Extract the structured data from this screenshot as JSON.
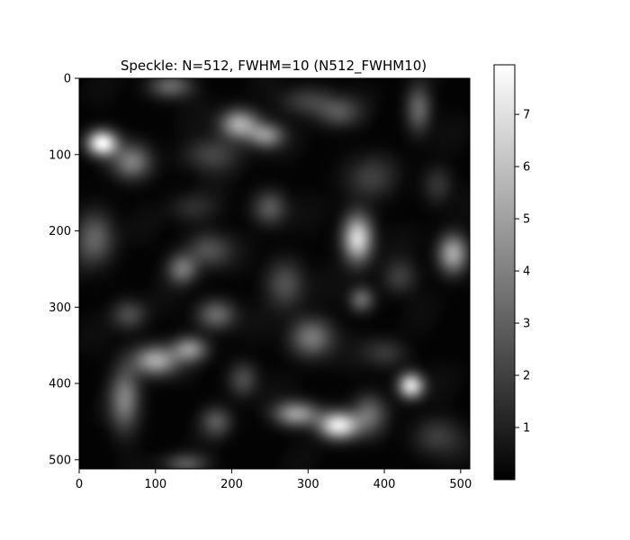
{
  "chart_data": {
    "type": "heatmap",
    "title": "Speckle: N=512, FWHM=10 (N512_FWHM10)",
    "xlabel": "",
    "ylabel": "",
    "xlim": [
      0,
      512
    ],
    "ylim": [
      512,
      0
    ],
    "x_ticks": [
      0,
      100,
      200,
      300,
      400,
      500
    ],
    "y_ticks": [
      0,
      100,
      200,
      300,
      400,
      500
    ],
    "colormap": "gray",
    "colorbar": {
      "range": [
        0,
        7.95
      ],
      "ticks": [
        1,
        2,
        3,
        4,
        5,
        6,
        7
      ]
    },
    "grid": false,
    "blobs": [
      {
        "x": 30,
        "y": 85,
        "value": 7.5,
        "sx": 14,
        "sy": 12
      },
      {
        "x": 70,
        "y": 110,
        "value": 3.5,
        "sx": 18,
        "sy": 16
      },
      {
        "x": 120,
        "y": 10,
        "value": 3.0,
        "sx": 20,
        "sy": 12
      },
      {
        "x": 210,
        "y": 60,
        "value": 5.0,
        "sx": 18,
        "sy": 14
      },
      {
        "x": 245,
        "y": 75,
        "value": 4.0,
        "sx": 16,
        "sy": 12
      },
      {
        "x": 300,
        "y": 30,
        "value": 1.8,
        "sx": 26,
        "sy": 14
      },
      {
        "x": 340,
        "y": 45,
        "value": 2.2,
        "sx": 20,
        "sy": 14
      },
      {
        "x": 445,
        "y": 40,
        "value": 3.0,
        "sx": 12,
        "sy": 22
      },
      {
        "x": 175,
        "y": 100,
        "value": 2.0,
        "sx": 26,
        "sy": 16
      },
      {
        "x": 380,
        "y": 130,
        "value": 1.6,
        "sx": 24,
        "sy": 20
      },
      {
        "x": 470,
        "y": 140,
        "value": 1.5,
        "sx": 14,
        "sy": 18
      },
      {
        "x": 20,
        "y": 210,
        "value": 3.0,
        "sx": 18,
        "sy": 24
      },
      {
        "x": 150,
        "y": 170,
        "value": 1.3,
        "sx": 22,
        "sy": 14
      },
      {
        "x": 250,
        "y": 170,
        "value": 2.6,
        "sx": 16,
        "sy": 16
      },
      {
        "x": 365,
        "y": 210,
        "value": 6.5,
        "sx": 14,
        "sy": 22
      },
      {
        "x": 490,
        "y": 230,
        "value": 5.0,
        "sx": 14,
        "sy": 18
      },
      {
        "x": 135,
        "y": 250,
        "value": 3.4,
        "sx": 14,
        "sy": 14
      },
      {
        "x": 170,
        "y": 225,
        "value": 2.4,
        "sx": 20,
        "sy": 16
      },
      {
        "x": 270,
        "y": 270,
        "value": 2.4,
        "sx": 18,
        "sy": 22
      },
      {
        "x": 370,
        "y": 290,
        "value": 3.0,
        "sx": 12,
        "sy": 12
      },
      {
        "x": 420,
        "y": 260,
        "value": 1.8,
        "sx": 16,
        "sy": 16
      },
      {
        "x": 65,
        "y": 310,
        "value": 2.2,
        "sx": 16,
        "sy": 14
      },
      {
        "x": 180,
        "y": 310,
        "value": 3.1,
        "sx": 18,
        "sy": 14
      },
      {
        "x": 305,
        "y": 340,
        "value": 3.6,
        "sx": 20,
        "sy": 18
      },
      {
        "x": 100,
        "y": 370,
        "value": 5.0,
        "sx": 20,
        "sy": 14
      },
      {
        "x": 145,
        "y": 355,
        "value": 4.0,
        "sx": 16,
        "sy": 12
      },
      {
        "x": 60,
        "y": 420,
        "value": 3.6,
        "sx": 14,
        "sy": 30
      },
      {
        "x": 215,
        "y": 395,
        "value": 2.2,
        "sx": 14,
        "sy": 16
      },
      {
        "x": 435,
        "y": 403,
        "value": 6.5,
        "sx": 12,
        "sy": 12
      },
      {
        "x": 285,
        "y": 440,
        "value": 4.6,
        "sx": 20,
        "sy": 12
      },
      {
        "x": 340,
        "y": 455,
        "value": 7.0,
        "sx": 18,
        "sy": 13
      },
      {
        "x": 380,
        "y": 440,
        "value": 2.8,
        "sx": 16,
        "sy": 18
      },
      {
        "x": 180,
        "y": 450,
        "value": 2.4,
        "sx": 14,
        "sy": 14
      },
      {
        "x": 470,
        "y": 470,
        "value": 1.8,
        "sx": 22,
        "sy": 18
      },
      {
        "x": 140,
        "y": 505,
        "value": 2.5,
        "sx": 20,
        "sy": 10
      },
      {
        "x": 400,
        "y": 360,
        "value": 1.6,
        "sx": 20,
        "sy": 14
      }
    ]
  }
}
